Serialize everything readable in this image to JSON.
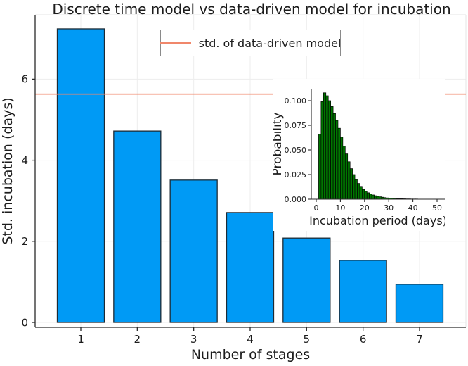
{
  "title": "Discrete time model vs data-driven model for incubation",
  "legend": {
    "label": "std. of data-driven model"
  },
  "colors": {
    "bar_fill": "#009AF5",
    "bar_edge": "#1C2B36",
    "hline": "#F0876B",
    "hist_fill": "#007700",
    "hist_edge": "#000000",
    "grid": "#EDEDED",
    "frame_light": "#E6E6E6",
    "axis": "#2A2A2A",
    "text": "#1C1C1C",
    "legend_border": "#8A8A8A"
  },
  "chart_data": [
    {
      "type": "bar",
      "title": "Discrete time model vs data-driven model for incubation",
      "xlabel": "Number of stages",
      "ylabel": "Std. incubation (days)",
      "categories": [
        "1",
        "2",
        "3",
        "4",
        "5",
        "6",
        "7"
      ],
      "values": [
        7.24,
        4.72,
        3.51,
        2.71,
        2.08,
        1.53,
        0.94
      ],
      "yticks": [
        0,
        2,
        4,
        6
      ],
      "ytick_labels": [
        "0",
        "2",
        "4",
        "6"
      ],
      "ylim": [
        -0.12,
        7.59
      ],
      "grid": true,
      "legend_position": "top-center",
      "hline": {
        "value": 5.63,
        "label": "std. of data-driven model"
      }
    },
    {
      "type": "bar",
      "subtype": "histogram",
      "xlabel": "Incubation period (days)",
      "ylabel": "Probability",
      "bin_start": 1,
      "bin_width": 1,
      "values": [
        0.066,
        0.099,
        0.108,
        0.105,
        0.1,
        0.094,
        0.087,
        0.08,
        0.072,
        0.063,
        0.054,
        0.046,
        0.038,
        0.031,
        0.025,
        0.02,
        0.016,
        0.013,
        0.01,
        0.008,
        0.0065,
        0.0053,
        0.0043,
        0.0035,
        0.0029,
        0.0024,
        0.002,
        0.0016,
        0.0013,
        0.0011,
        0.0009,
        0.0008,
        0.0006,
        0.0005,
        0.0005,
        0.0004,
        0.0003,
        0.0003,
        0.0002,
        0.0002,
        0.0002,
        0.0001,
        0.0001,
        0.0001,
        0.0001,
        0.0001,
        0.0001,
        0.0001,
        0.0001
      ],
      "xticks": [
        0,
        10,
        20,
        30,
        40,
        50
      ],
      "xtick_labels": [
        "0",
        "10",
        "20",
        "30",
        "40",
        "50"
      ],
      "yticks": [
        0,
        0.025,
        0.05,
        0.075,
        0.1
      ],
      "ytick_labels": [
        "0.000",
        "0.025",
        "0.050",
        "0.075",
        "0.100"
      ],
      "xlim": [
        -2,
        53
      ],
      "ylim": [
        0,
        0.111
      ],
      "grid": false
    }
  ]
}
